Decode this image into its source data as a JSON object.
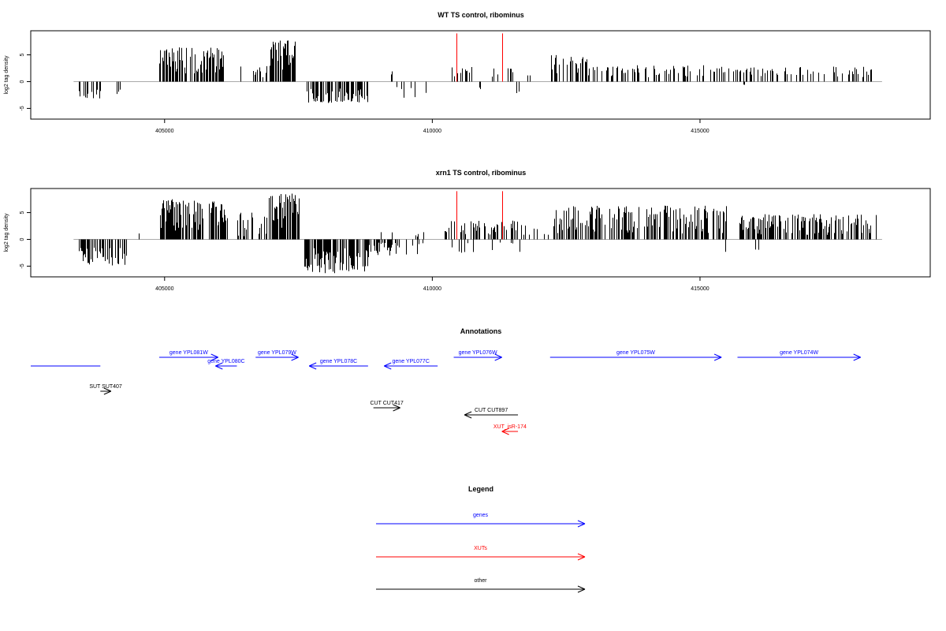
{
  "chart_data": [
    {
      "type": "bar",
      "title": "WT TS control, ribominus",
      "ylabel": "log2 tag density",
      "xlabel": "",
      "xlim": [
        402500,
        419300
      ],
      "ylim": [
        -7,
        9.5
      ],
      "x_ticks": [
        405000,
        410000,
        415000
      ],
      "x_tick_labels": [
        "405000",
        "410000",
        "415000"
      ],
      "y_ticks": [
        -5,
        0,
        5
      ],
      "y_tick_labels": [
        "-5",
        "0",
        "5"
      ],
      "baseline": [
        403300,
        418400
      ],
      "highlight_color": "#ff0000",
      "highlight_lines": [
        {
          "x": 410450,
          "y": 9
        },
        {
          "x": 411300,
          "y": 9
        }
      ],
      "clusters": [
        {
          "start": 403350,
          "end": 403900,
          "min": -3.2,
          "max": -1.2,
          "n": 16,
          "seed": 11
        },
        {
          "start": 404100,
          "end": 404250,
          "min": -2.5,
          "max": -0.8,
          "n": 3,
          "seed": 12
        },
        {
          "start": 404900,
          "end": 406100,
          "min": 1.5,
          "max": 6.5,
          "n": 95,
          "seed": 13
        },
        {
          "start": 406400,
          "end": 406450,
          "min": 2.0,
          "max": 3.5,
          "n": 2,
          "seed": 14
        },
        {
          "start": 406650,
          "end": 406950,
          "min": 0.8,
          "max": 3.0,
          "n": 10,
          "seed": 15
        },
        {
          "start": 406950,
          "end": 407450,
          "min": 2.0,
          "max": 7.8,
          "n": 60,
          "seed": 16
        },
        {
          "start": 407650,
          "end": 408800,
          "min": -4.0,
          "max": -1.2,
          "n": 80,
          "seed": 17
        },
        {
          "start": 409200,
          "end": 409350,
          "min": 1.0,
          "max": 2.0,
          "n": 2,
          "seed": 18
        },
        {
          "start": 409300,
          "end": 410000,
          "min": -3.0,
          "max": -0.6,
          "n": 6,
          "seed": 19
        },
        {
          "start": 410300,
          "end": 410750,
          "min": 0.8,
          "max": 2.8,
          "n": 10,
          "seed": 20
        },
        {
          "start": 410850,
          "end": 411000,
          "min": -1.6,
          "max": -0.5,
          "n": 2,
          "seed": 21
        },
        {
          "start": 411100,
          "end": 411550,
          "min": 0.8,
          "max": 2.8,
          "n": 7,
          "seed": 22
        },
        {
          "start": 411550,
          "end": 411650,
          "min": -2.8,
          "max": -1.0,
          "n": 2,
          "seed": 23
        },
        {
          "start": 411700,
          "end": 412000,
          "min": 0.6,
          "max": 1.6,
          "n": 3,
          "seed": 24
        },
        {
          "start": 412200,
          "end": 412900,
          "min": 1.0,
          "max": 5.0,
          "n": 35,
          "seed": 25
        },
        {
          "start": 412900,
          "end": 415500,
          "min": 0.8,
          "max": 3.4,
          "n": 75,
          "seed": 26
        },
        {
          "start": 415750,
          "end": 416000,
          "min": -1.0,
          "max": -0.4,
          "n": 2,
          "seed": 27
        },
        {
          "start": 415500,
          "end": 418200,
          "min": 0.8,
          "max": 2.8,
          "n": 70,
          "seed": 28
        }
      ]
    },
    {
      "type": "bar",
      "title": "xrn1 TS control, ribominus",
      "ylabel": "log2 tag density",
      "xlabel": "",
      "xlim": [
        402500,
        419300
      ],
      "ylim": [
        -7,
        9.5
      ],
      "x_ticks": [
        405000,
        410000,
        415000
      ],
      "x_tick_labels": [
        "405000",
        "410000",
        "415000"
      ],
      "y_ticks": [
        -5,
        0,
        5
      ],
      "y_tick_labels": [
        "-5",
        "0",
        "5"
      ],
      "baseline": [
        403300,
        418400
      ],
      "highlight_color": "#ff0000",
      "highlight_lines": [
        {
          "x": 410450,
          "y": 9
        },
        {
          "x": 411300,
          "y": 9
        }
      ],
      "clusters": [
        {
          "start": 403350,
          "end": 404300,
          "min": -5.0,
          "max": -1.5,
          "n": 45,
          "seed": 31
        },
        {
          "start": 404500,
          "end": 404550,
          "min": 1.0,
          "max": 1.6,
          "n": 1,
          "seed": 32
        },
        {
          "start": 404900,
          "end": 406200,
          "min": 1.5,
          "max": 7.5,
          "n": 120,
          "seed": 33
        },
        {
          "start": 406350,
          "end": 406900,
          "min": 0.5,
          "max": 5.0,
          "n": 20,
          "seed": 34
        },
        {
          "start": 406900,
          "end": 407500,
          "min": 2.0,
          "max": 8.8,
          "n": 70,
          "seed": 35
        },
        {
          "start": 407600,
          "end": 408800,
          "min": -6.3,
          "max": -1.5,
          "n": 100,
          "seed": 36
        },
        {
          "start": 408800,
          "end": 410000,
          "min": -3.0,
          "max": -0.6,
          "n": 35,
          "seed": 37
        },
        {
          "start": 409000,
          "end": 410000,
          "min": 0.5,
          "max": 1.6,
          "n": 8,
          "seed": 38
        },
        {
          "start": 410200,
          "end": 411800,
          "min": 0.8,
          "max": 3.5,
          "n": 60,
          "seed": 39
        },
        {
          "start": 410300,
          "end": 411700,
          "min": -2.6,
          "max": -0.5,
          "n": 12,
          "seed": 40
        },
        {
          "start": 411800,
          "end": 412200,
          "min": 0.6,
          "max": 2.0,
          "n": 6,
          "seed": 41
        },
        {
          "start": 412200,
          "end": 415500,
          "min": 1.0,
          "max": 6.3,
          "n": 190,
          "seed": 42
        },
        {
          "start": 415450,
          "end": 415550,
          "min": -2.6,
          "max": -1.0,
          "n": 1,
          "seed": 43
        },
        {
          "start": 415650,
          "end": 418300,
          "min": 0.8,
          "max": 4.7,
          "n": 140,
          "seed": 44
        },
        {
          "start": 416000,
          "end": 416150,
          "min": -2.4,
          "max": -1.0,
          "n": 2,
          "seed": 45
        }
      ]
    },
    {
      "type": "diagram",
      "title": "Annotations",
      "xlim": [
        402500,
        419300
      ],
      "features": [
        {
          "label": "",
          "start": 402500,
          "end": 403800,
          "strand": "none",
          "row": 1,
          "color": "#0000ff"
        },
        {
          "label": "gene YPL081W",
          "start": 404900,
          "end": 406000,
          "strand": "+",
          "row": 0,
          "color": "#0000ff"
        },
        {
          "label": "gene YPL080C",
          "start": 405950,
          "end": 406350,
          "strand": "-",
          "row": 1,
          "color": "#0000ff"
        },
        {
          "label": "gene YPL079W",
          "start": 406700,
          "end": 407500,
          "strand": "+",
          "row": 0,
          "color": "#0000ff"
        },
        {
          "label": "gene YPL078C",
          "start": 407700,
          "end": 408800,
          "strand": "-",
          "row": 1,
          "color": "#0000ff"
        },
        {
          "label": "gene YPL077C",
          "start": 409100,
          "end": 410100,
          "strand": "-",
          "row": 1,
          "color": "#0000ff"
        },
        {
          "label": "gene YPL076W",
          "start": 410400,
          "end": 411300,
          "strand": "+",
          "row": 0,
          "color": "#0000ff"
        },
        {
          "label": "gene YPL075W",
          "start": 412200,
          "end": 415400,
          "strand": "+",
          "row": 0,
          "color": "#0000ff"
        },
        {
          "label": "gene YPL074W",
          "start": 415700,
          "end": 418000,
          "strand": "+",
          "row": 0,
          "color": "#0000ff"
        },
        {
          "label": "SUT SUT407",
          "start": 403800,
          "end": 404000,
          "strand": "+",
          "row": 2,
          "color": "#000000"
        },
        {
          "label": "CUT CUT417",
          "start": 408900,
          "end": 409400,
          "strand": "+",
          "row": 3,
          "color": "#000000"
        },
        {
          "label": "CUT CUT897",
          "start": 410600,
          "end": 411600,
          "strand": "-",
          "row": 4,
          "color": "#000000"
        },
        {
          "label": "XUT_isR-174",
          "start": 411300,
          "end": 411600,
          "strand": "-",
          "row": 5,
          "color": "#ff0000"
        }
      ]
    }
  ],
  "legend": {
    "title": "Legend",
    "items": [
      {
        "label": "genes",
        "color": "#0000ff"
      },
      {
        "label": "XUTs",
        "color": "#ff0000"
      },
      {
        "label": "other",
        "color": "#000000"
      }
    ]
  }
}
